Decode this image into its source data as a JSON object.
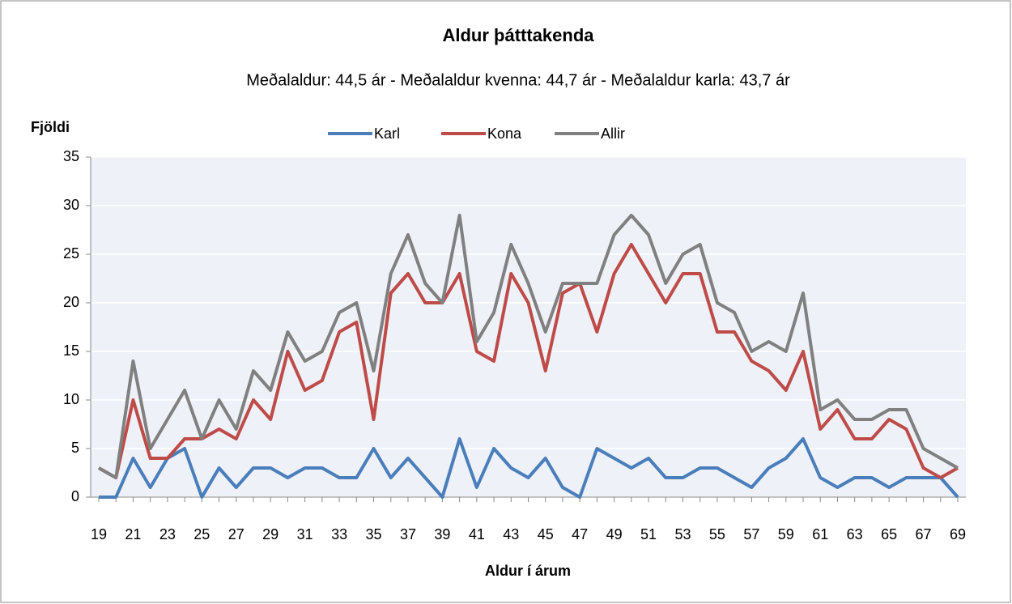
{
  "chart_data": {
    "type": "line",
    "title": "Aldur þátttakenda",
    "subtitle": "Meðalaldur:  44,5 ár - Meðalaldur kvenna:  44,7 ár - Meðalaldur karla: 43,7 ár",
    "ylabel": "Fjöldi",
    "xlabel": "Aldur í árum",
    "categories": [
      "19",
      null,
      "21",
      null,
      "23",
      null,
      "25",
      null,
      "27",
      null,
      "29",
      null,
      "31",
      null,
      "33",
      null,
      "35",
      null,
      "37",
      null,
      "39",
      null,
      "41",
      null,
      "43",
      null,
      "45",
      null,
      "47",
      null,
      "49",
      null,
      "51",
      null,
      "53",
      null,
      "55",
      null,
      "57",
      null,
      "59",
      null,
      "61",
      null,
      "63",
      null,
      "65",
      null,
      "67",
      null,
      "69"
    ],
    "series": [
      {
        "name": "Karl",
        "color": "#4a7ebb",
        "values": [
          0,
          0,
          4,
          1,
          4,
          5,
          0,
          3,
          1,
          3,
          3,
          2,
          3,
          3,
          2,
          2,
          5,
          2,
          4,
          2,
          0,
          6,
          1,
          5,
          3,
          2,
          4,
          1,
          0,
          5,
          4,
          3,
          4,
          2,
          2,
          3,
          3,
          2,
          1,
          3,
          4,
          6,
          2,
          1,
          2,
          2,
          1,
          2,
          2,
          2,
          0
        ]
      },
      {
        "name": "Kona",
        "color": "#be4b48",
        "values": [
          3,
          2,
          10,
          4,
          4,
          6,
          6,
          7,
          6,
          10,
          8,
          15,
          11,
          12,
          17,
          18,
          8,
          21,
          23,
          20,
          20,
          23,
          15,
          14,
          23,
          20,
          13,
          21,
          22,
          17,
          23,
          26,
          23,
          20,
          23,
          23,
          17,
          17,
          14,
          13,
          11,
          15,
          7,
          9,
          6,
          6,
          8,
          7,
          3,
          2,
          3
        ]
      },
      {
        "name": "Allir",
        "color": "#808080",
        "values": [
          3,
          2,
          14,
          5,
          8,
          11,
          6,
          10,
          7,
          13,
          11,
          17,
          14,
          15,
          19,
          20,
          13,
          23,
          27,
          22,
          20,
          29,
          16,
          19,
          26,
          22,
          17,
          22,
          22,
          22,
          27,
          29,
          27,
          22,
          25,
          26,
          20,
          19,
          15,
          16,
          15,
          21,
          9,
          10,
          8,
          8,
          9,
          9,
          5,
          4,
          3
        ]
      }
    ],
    "ylim": [
      0,
      35
    ],
    "yticks": [
      0,
      5,
      10,
      15,
      20,
      25,
      30,
      35
    ],
    "grid": true
  }
}
